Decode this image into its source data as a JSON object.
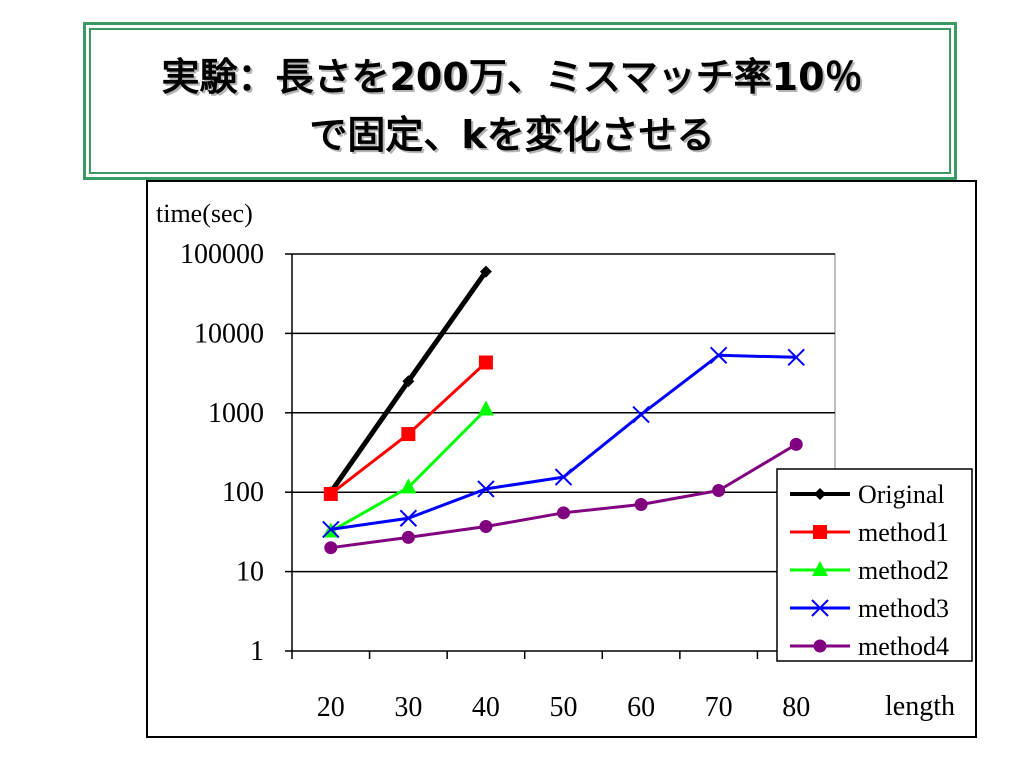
{
  "slide": {
    "title_line1": "実験：長さを200万、ミスマッチ率10％",
    "title_line2": "で固定、kを変化させる"
  },
  "colors": {
    "title_border": "#3a9a64",
    "grid": "#000000",
    "plot_background": "#ffffff"
  },
  "chart_data": {
    "type": "line",
    "ylabel": "time(sec)",
    "xlabel": "length",
    "yscale": "log",
    "ylim": [
      1,
      100000
    ],
    "yticks": [
      "100000",
      "10000",
      "1000",
      "100",
      "10",
      "1"
    ],
    "categories": [
      "20",
      "30",
      "40",
      "50",
      "60",
      "70",
      "80"
    ],
    "grid": true,
    "legend_position": "right",
    "series": [
      {
        "name": "Original",
        "color": "#000000",
        "marker": "diamond",
        "values": [
          100,
          2500,
          60000,
          null,
          null,
          null,
          null
        ]
      },
      {
        "name": "method1",
        "color": "#ff0000",
        "marker": "square",
        "values": [
          95,
          540,
          4300,
          null,
          null,
          null,
          null
        ]
      },
      {
        "name": "method2",
        "color": "#00ff00",
        "marker": "triangle",
        "values": [
          32,
          115,
          1100,
          null,
          null,
          null,
          null
        ]
      },
      {
        "name": "method3",
        "color": "#0000ff",
        "marker": "x",
        "values": [
          34,
          47,
          110,
          155,
          950,
          5300,
          5000
        ]
      },
      {
        "name": "method4",
        "color": "#800080",
        "marker": "circle",
        "values": [
          20,
          27,
          37,
          55,
          70,
          105,
          400
        ]
      }
    ]
  }
}
